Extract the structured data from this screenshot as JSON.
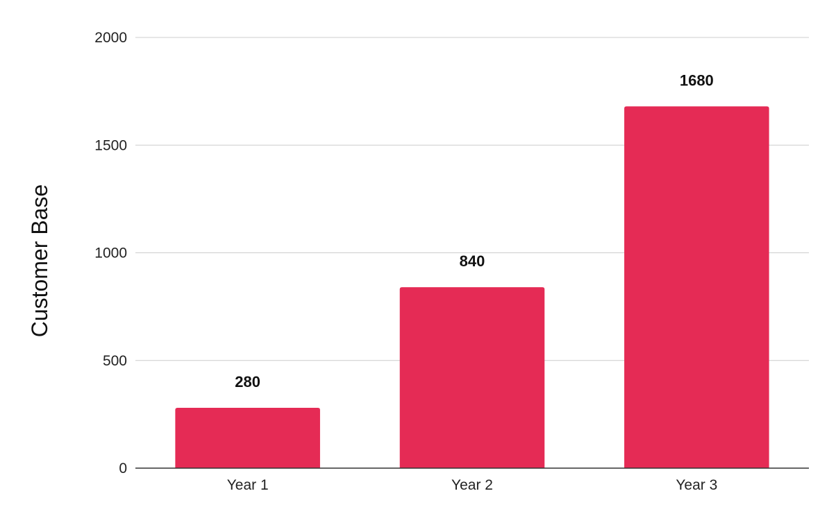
{
  "chart_data": {
    "type": "bar",
    "categories": [
      "Year 1",
      "Year 2",
      "Year 3"
    ],
    "values": [
      280,
      840,
      1680
    ],
    "data_labels": [
      "280",
      "840",
      "1680"
    ],
    "title": "",
    "xlabel": "",
    "ylabel": "Customer Base",
    "ylim": [
      0,
      2000
    ],
    "yticks": [
      0,
      500,
      1000,
      1500,
      2000
    ],
    "ytick_labels": [
      "0",
      "500",
      "1000",
      "1500",
      "2000"
    ],
    "grid": true,
    "legend": "none",
    "bar_color": "#e52b55"
  }
}
